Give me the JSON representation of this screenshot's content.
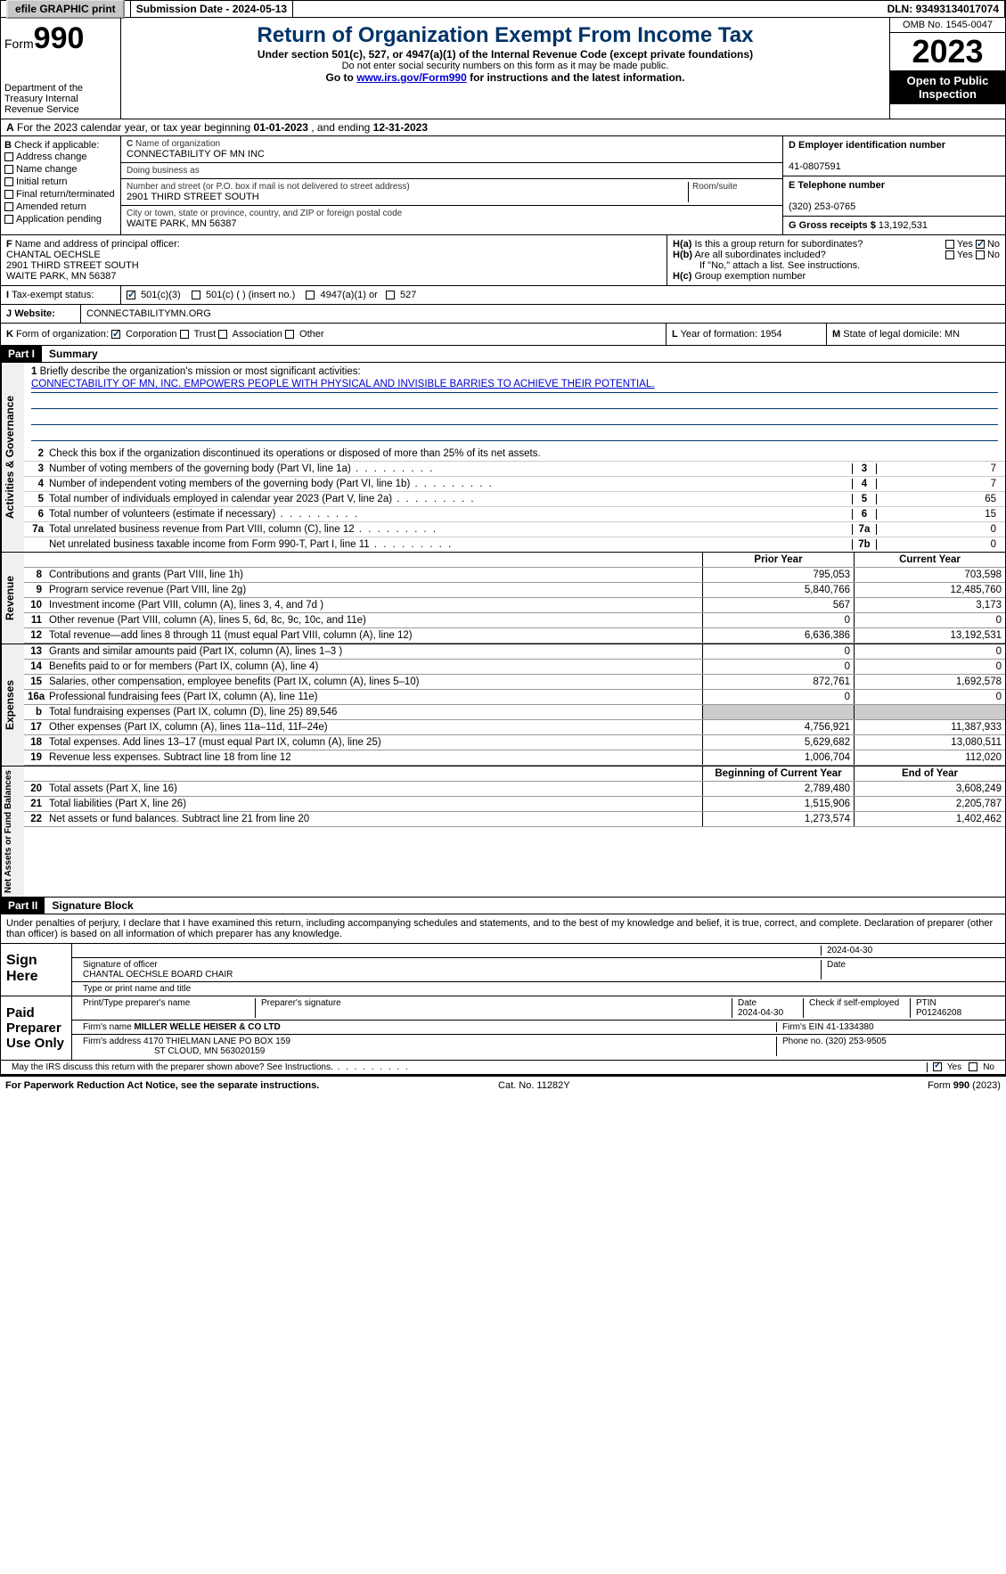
{
  "topbar": {
    "efile": "efile GRAPHIC print",
    "submission_label": "Submission Date - ",
    "submission_date": "2024-05-13",
    "dln_label": "DLN: ",
    "dln": "93493134017074"
  },
  "header": {
    "form_prefix": "Form",
    "form_number": "990",
    "dept": "Department of the Treasury\nInternal Revenue Service",
    "title": "Return of Organization Exempt From Income Tax",
    "sub1": "Under section 501(c), 527, or 4947(a)(1) of the Internal Revenue Code (except private foundations)",
    "sub2": "Do not enter social security numbers on this form as it may be made public.",
    "sub3_pre": "Go to ",
    "sub3_link": "www.irs.gov/Form990",
    "sub3_post": " for instructions and the latest information.",
    "omb": "OMB No. 1545-0047",
    "year": "2023",
    "inspect": "Open to Public Inspection"
  },
  "section_a": {
    "text_pre": "For the 2023 calendar year, or tax year beginning ",
    "begin": "01-01-2023",
    "mid": " , and ending ",
    "end": "12-31-2023"
  },
  "box_b": {
    "label": "Check if applicable:",
    "items": [
      "Address change",
      "Name change",
      "Initial return",
      "Final return/terminated",
      "Amended return",
      "Application pending"
    ]
  },
  "box_c": {
    "name_label": "Name of organization",
    "name": "CONNECTABILITY OF MN INC",
    "dba_label": "Doing business as",
    "dba": "",
    "street_label": "Number and street (or P.O. box if mail is not delivered to street address)",
    "room_label": "Room/suite",
    "street": "2901 THIRD STREET SOUTH",
    "city_label": "City or town, state or province, country, and ZIP or foreign postal code",
    "city": "WAITE PARK, MN  56387"
  },
  "box_d": {
    "label": "D Employer identification number",
    "value": "41-0807591"
  },
  "box_e": {
    "label": "E Telephone number",
    "value": "(320) 253-0765"
  },
  "box_g": {
    "label": "G Gross receipts $ ",
    "value": "13,192,531"
  },
  "box_f": {
    "label": "Name and address of principal officer:",
    "name": "CHANTAL OECHSLE",
    "street": "2901 THIRD STREET SOUTH",
    "city": "WAITE PARK, MN  56387"
  },
  "box_h": {
    "a_label": "Is this a group return for subordinates?",
    "a_yes": "Yes",
    "a_no": "No",
    "b_label": "Are all subordinates included?",
    "b_yes": "Yes",
    "b_no": "No",
    "b_note": "If \"No,\" attach a list. See instructions.",
    "c_label": "Group exemption number",
    "c_value": ""
  },
  "row_i": {
    "label": "Tax-exempt status:",
    "opt1": "501(c)(3)",
    "opt2": "501(c) (  ) (insert no.)",
    "opt3": "4947(a)(1) or",
    "opt4": "527"
  },
  "row_j": {
    "label": "Website:",
    "value": "CONNECTABILITYMN.ORG"
  },
  "row_k": {
    "label": "Form of organization:",
    "opts": [
      "Corporation",
      "Trust",
      "Association",
      "Other"
    ],
    "l_label": "Year of formation: ",
    "l_value": "1954",
    "m_label": "State of legal domicile: ",
    "m_value": "MN"
  },
  "part1": {
    "label": "Part I",
    "title": "Summary"
  },
  "mission": {
    "q": "Briefly describe the organization's mission or most significant activities:",
    "text": "CONNECTABILITY OF MN, INC. EMPOWERS PEOPLE WITH PHYSICAL AND INVISIBLE BARRIES TO ACHIEVE THEIR POTENTIAL."
  },
  "gov_lines": {
    "l2": "Check this box     if the organization discontinued its operations or disposed of more than 25% of its net assets.",
    "l3": {
      "text": "Number of voting members of the governing body (Part VI, line 1a)",
      "key": "3",
      "val": "7"
    },
    "l4": {
      "text": "Number of independent voting members of the governing body (Part VI, line 1b)",
      "key": "4",
      "val": "7"
    },
    "l5": {
      "text": "Total number of individuals employed in calendar year 2023 (Part V, line 2a)",
      "key": "5",
      "val": "65"
    },
    "l6": {
      "text": "Total number of volunteers (estimate if necessary)",
      "key": "6",
      "val": "15"
    },
    "l7a": {
      "text": "Total unrelated business revenue from Part VIII, column (C), line 12",
      "key": "7a",
      "val": "0"
    },
    "l7b": {
      "text": "Net unrelated business taxable income from Form 990-T, Part I, line 11",
      "key": "7b",
      "val": "0"
    }
  },
  "rev_hdr": {
    "prior": "Prior Year",
    "curr": "Current Year"
  },
  "revenue": [
    {
      "n": "8",
      "text": "Contributions and grants (Part VIII, line 1h)",
      "prior": "795,053",
      "curr": "703,598"
    },
    {
      "n": "9",
      "text": "Program service revenue (Part VIII, line 2g)",
      "prior": "5,840,766",
      "curr": "12,485,760"
    },
    {
      "n": "10",
      "text": "Investment income (Part VIII, column (A), lines 3, 4, and 7d )",
      "prior": "567",
      "curr": "3,173"
    },
    {
      "n": "11",
      "text": "Other revenue (Part VIII, column (A), lines 5, 6d, 8c, 9c, 10c, and 11e)",
      "prior": "0",
      "curr": "0"
    },
    {
      "n": "12",
      "text": "Total revenue—add lines 8 through 11 (must equal Part VIII, column (A), line 12)",
      "prior": "6,636,386",
      "curr": "13,192,531"
    }
  ],
  "expenses": [
    {
      "n": "13",
      "text": "Grants and similar amounts paid (Part IX, column (A), lines 1–3 )",
      "prior": "0",
      "curr": "0"
    },
    {
      "n": "14",
      "text": "Benefits paid to or for members (Part IX, column (A), line 4)",
      "prior": "0",
      "curr": "0"
    },
    {
      "n": "15",
      "text": "Salaries, other compensation, employee benefits (Part IX, column (A), lines 5–10)",
      "prior": "872,761",
      "curr": "1,692,578"
    },
    {
      "n": "16a",
      "text": "Professional fundraising fees (Part IX, column (A), line 11e)",
      "prior": "0",
      "curr": "0"
    },
    {
      "n": "b",
      "text": "Total fundraising expenses (Part IX, column (D), line 25) 89,546",
      "prior": "",
      "curr": "",
      "shaded": true
    },
    {
      "n": "17",
      "text": "Other expenses (Part IX, column (A), lines 11a–11d, 11f–24e)",
      "prior": "4,756,921",
      "curr": "11,387,933"
    },
    {
      "n": "18",
      "text": "Total expenses. Add lines 13–17 (must equal Part IX, column (A), line 25)",
      "prior": "5,629,682",
      "curr": "13,080,511"
    },
    {
      "n": "19",
      "text": "Revenue less expenses. Subtract line 18 from line 12",
      "prior": "1,006,704",
      "curr": "112,020"
    }
  ],
  "na_hdr": {
    "prior": "Beginning of Current Year",
    "curr": "End of Year"
  },
  "netassets": [
    {
      "n": "20",
      "text": "Total assets (Part X, line 16)",
      "prior": "2,789,480",
      "curr": "3,608,249"
    },
    {
      "n": "21",
      "text": "Total liabilities (Part X, line 26)",
      "prior": "1,515,906",
      "curr": "2,205,787"
    },
    {
      "n": "22",
      "text": "Net assets or fund balances. Subtract line 21 from line 20",
      "prior": "1,273,574",
      "curr": "1,402,462"
    }
  ],
  "part2": {
    "label": "Part II",
    "title": "Signature Block"
  },
  "sig": {
    "decl": "Under penalties of perjury, I declare that I have examined this return, including accompanying schedules and statements, and to the best of my knowledge and belief, it is true, correct, and complete. Declaration of preparer (other than officer) is based on all information of which preparer has any knowledge.",
    "here": "Sign Here",
    "officer_sig_label": "Signature of officer",
    "officer_name": "CHANTAL OECHSLE  BOARD CHAIR",
    "officer_type_label": "Type or print name and title",
    "date_label": "Date",
    "date": "2024-04-30",
    "paid": "Paid Preparer Use Only",
    "prep_name_label": "Print/Type preparer's name",
    "prep_sig_label": "Preparer's signature",
    "prep_date_label": "Date",
    "prep_date": "2024-04-30",
    "self_emp": "Check      if self-employed",
    "ptin_label": "PTIN",
    "ptin": "P01246208",
    "firm_name_label": "Firm's name  ",
    "firm_name": "MILLER WELLE HEISER & CO LTD",
    "firm_ein_label": "Firm's EIN  ",
    "firm_ein": "41-1334380",
    "firm_addr_label": "Firm's address ",
    "firm_addr1": "4170 THIELMAN LANE PO BOX 159",
    "firm_addr2": "ST CLOUD, MN  563020159",
    "phone_label": "Phone no. ",
    "phone": "(320) 253-9505",
    "discuss": "May the IRS discuss this return with the preparer shown above? See Instructions.",
    "yes": "Yes",
    "no": "No"
  },
  "footer": {
    "left": "For Paperwork Reduction Act Notice, see the separate instructions.",
    "mid": "Cat. No. 11282Y",
    "right_pre": "Form ",
    "right_form": "990",
    "right_post": " (2023)"
  },
  "vtabs": {
    "gov": "Activities & Governance",
    "rev": "Revenue",
    "exp": "Expenses",
    "na": "Net Assets or Fund Balances"
  },
  "colors": {
    "brand": "#003366",
    "link": "#0000cc",
    "shade": "#cccccc"
  }
}
